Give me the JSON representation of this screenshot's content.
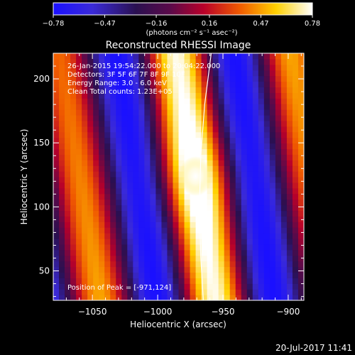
{
  "colorbar": {
    "ticks": [
      "-0.78",
      "-0.47",
      "-0.16",
      "0.16",
      "0.47",
      "0.78"
    ],
    "unit_label": "(photons cm⁻² s⁻¹ asec⁻²)",
    "range": [
      -0.78,
      0.78
    ]
  },
  "chart_data": {
    "type": "heatmap",
    "title": "Reconstructed RHESSI Image",
    "xlabel": "Heliocentric X (arcsec)",
    "ylabel": "Heliocentric Y (arcsec)",
    "xlim": [
      -1080,
      -888
    ],
    "ylim": [
      27,
      220
    ],
    "xticks": [
      -1050,
      -1000,
      -950,
      -900
    ],
    "xtick_labels": [
      "−1050",
      "−1000",
      "−950",
      "−900"
    ],
    "yticks": [
      50,
      100,
      150,
      200
    ],
    "ytick_labels": [
      "50",
      "100",
      "150",
      "200"
    ],
    "annotations": [
      "26-Jan-2015 19:54:22.000 to 20:04:22.000",
      "Detectors: 3F 5F 6F 7F 8F 9F 10F",
      "Energy Range: 3.0 - 6.0 keV",
      "Clean    Total counts: 1.23E+05"
    ],
    "peak_label": "Position of Peak = [-971,124]",
    "peak": [
      -971,
      124
    ],
    "limb_curve": [
      [
        -965,
        27
      ],
      [
        -967,
        60
      ],
      [
        -968,
        100
      ],
      [
        -967,
        140
      ],
      [
        -964,
        180
      ],
      [
        -959,
        220
      ]
    ]
  },
  "footer": {
    "timestamp": "20-Jul-2017 11:41"
  }
}
